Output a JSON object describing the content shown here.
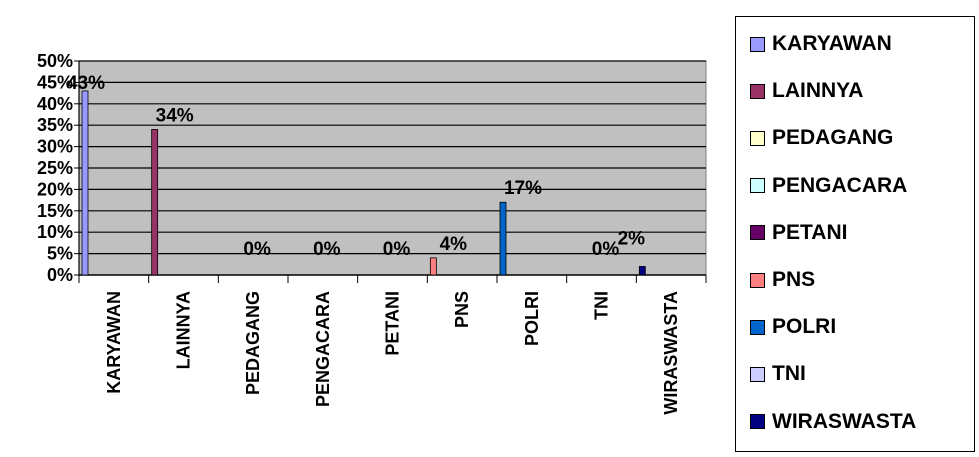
{
  "chart_data": {
    "type": "bar",
    "categories": [
      "KARYAWAN",
      "LAINNYA",
      "PEDAGANG",
      "PENGACARA",
      "PETANI",
      "PNS",
      "POLRI",
      "TNI",
      "WIRASWASTA"
    ],
    "values": [
      43,
      34,
      0,
      0,
      0,
      4,
      17,
      0,
      2
    ],
    "data_labels": [
      "43%",
      "34%",
      "0%",
      "0%",
      "0%",
      "4%",
      "17%",
      "0%",
      "2%"
    ],
    "colors": [
      "#9999FF",
      "#993366",
      "#FFFFCC",
      "#CCFFFF",
      "#660066",
      "#FF8080",
      "#0066CC",
      "#CCCCFF",
      "#000080"
    ],
    "yticks": [
      "0%",
      "5%",
      "10%",
      "15%",
      "20%",
      "25%",
      "30%",
      "35%",
      "40%",
      "45%",
      "50%"
    ],
    "ylim": [
      0,
      50
    ],
    "grid": true,
    "plot_background": "#C0C0C0",
    "legend_position": "right"
  }
}
